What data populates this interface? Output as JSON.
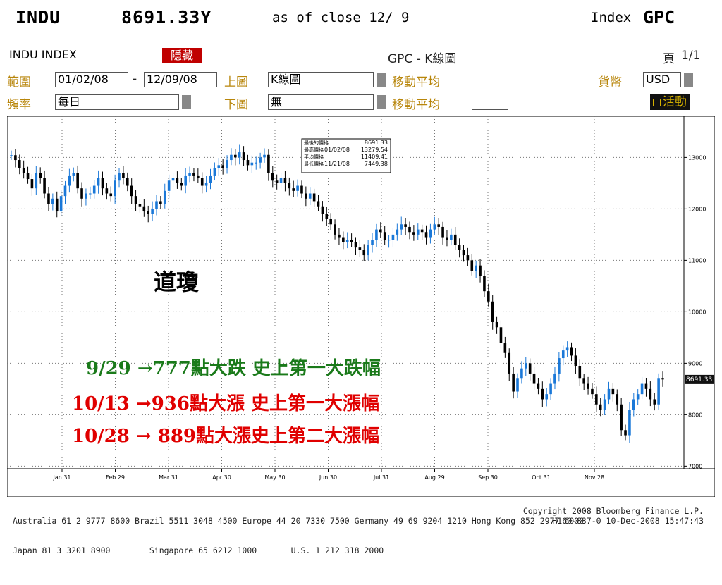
{
  "header": {
    "ticker": "INDU",
    "price": "8691.33Y",
    "asof": "as of close 12/ 9",
    "index_label": "Index",
    "gpc": "GPC"
  },
  "panel": {
    "security": "INDU INDEX",
    "hide_button": "隱藏",
    "title": "GPC - K線圖",
    "page_label": "頁",
    "page_value": "1/1",
    "range_label": "範圍",
    "range_from": "01/02/08",
    "range_sep": "-",
    "range_to": "12/09/08",
    "upper_label": "上圖",
    "upper_value": "K線圖",
    "ma_label": "移動平均",
    "currency_label": "貨幣",
    "currency_value": "USD",
    "freq_label": "頻率",
    "freq_value": "每日",
    "lower_label": "下圖",
    "lower_value": "無",
    "ma_label2": "移動平均",
    "active_button": "活動"
  },
  "chart_data": {
    "type": "candlestick",
    "title": "",
    "xlabel": "",
    "ylabel": "",
    "ylim": [
      6950,
      13800
    ],
    "y_ticks": [
      7000,
      8000,
      9000,
      10000,
      11000,
      12000,
      13000
    ],
    "x_tick_labels": [
      "Jan 31",
      "Feb 29",
      "Mar 31",
      "Apr 30",
      "May 30",
      "Jun 30",
      "Jul 31",
      "Aug 29",
      "Sep 30",
      "Oct 31",
      "Nov 28"
    ],
    "last_value_label": "8691.33",
    "grid": true,
    "series": [
      {
        "values": [
          13043,
          12950,
          12800,
          12700,
          12580,
          12400,
          12700,
          12600,
          12300,
          12100,
          12200,
          11950,
          12250,
          12450,
          12650,
          12700,
          12400,
          12200,
          12300,
          12300,
          12450,
          12600,
          12400,
          12300,
          12250,
          12550,
          12700,
          12600,
          12450,
          12250,
          12100,
          12050,
          11950,
          11900,
          12000,
          12150,
          12100,
          12350,
          12550,
          12600,
          12500,
          12450,
          12650,
          12700,
          12650,
          12600,
          12450,
          12500,
          12650,
          12800,
          12850,
          12800,
          12950,
          13050,
          13000,
          13100,
          12950,
          12850,
          12900,
          12900,
          13000,
          13050,
          12700,
          12550,
          12500,
          12600,
          12500,
          12400,
          12350,
          12450,
          12300,
          12200,
          12300,
          12150,
          12050,
          11900,
          11800,
          11700,
          11500,
          11450,
          11350,
          11400,
          11350,
          11250,
          11200,
          11100,
          11300,
          11400,
          11600,
          11550,
          11400,
          11400,
          11500,
          11600,
          11700,
          11650,
          11550,
          11500,
          11600,
          11550,
          11450,
          11600,
          11700,
          11650,
          11450,
          11400,
          11500,
          11300,
          11200,
          11100,
          11000,
          10800,
          10900,
          10700,
          10400,
          10200,
          9800,
          9700,
          9400,
          9200,
          8800,
          8450,
          8700,
          8900,
          9000,
          8800,
          8600,
          8500,
          8300,
          8400,
          8600,
          8800,
          9100,
          9250,
          9300,
          9150,
          8950,
          8700,
          8600,
          8500,
          8400,
          8200,
          8100,
          8300,
          8500,
          8400,
          8200,
          7700,
          7600,
          8100,
          8300,
          8400,
          8600,
          8500,
          8300,
          8200,
          8700,
          8691.33
        ],
        "high": 13279.54,
        "low": 7449.38,
        "last": 8691.33
      }
    ],
    "stats_box": {
      "rows": [
        {
          "label": "最後的價格",
          "date": "",
          "value": "8691.33"
        },
        {
          "label": "最高價格",
          "date": "01/02/08",
          "value": "13279.54"
        },
        {
          "label": "平均價格",
          "date": "",
          "value": "11409.41"
        },
        {
          "label": "最低價格",
          "date": "11/21/08",
          "value": "7449.38"
        }
      ]
    },
    "annotations": {
      "index_name": "道瓊",
      "lines": [
        {
          "text": "9/29 →777點大跌 史上第一大跌幅",
          "color": "#1a7a1a"
        },
        {
          "text": "10/13 →936點大漲 史上第一大漲幅",
          "color": "#e00000"
        },
        {
          "text": "10/28 → 889點大漲史上第二大漲幅",
          "color": "#e00000"
        }
      ]
    }
  },
  "footer": {
    "line1": "Australia 61 2 9777 8600 Brazil 5511 3048 4500 Europe 44 20 7330 7500 Germany 49 69 9204 1210 Hong Kong 852 2977 6000",
    "line2": "Japan 81 3 3201 8900        Singapore 65 6212 1000       U.S. 1 212 318 2000",
    "right2": "Copyright 2008 Bloomberg Finance L.P.",
    "right3": "H160-837-0 10-Dec-2008 15:47:43"
  }
}
